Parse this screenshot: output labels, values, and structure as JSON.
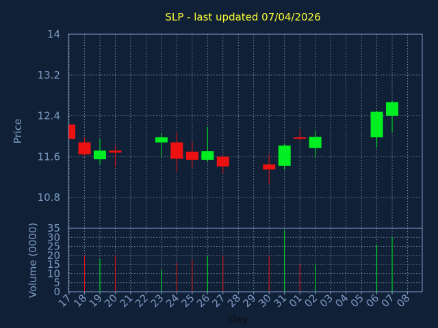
{
  "chart_data": {
    "type": "candlestick",
    "title": "SLP - last updated 07/04/2026",
    "xlabel": "Day",
    "price_ylabel": "Price",
    "volume_ylabel": "Volume (0000)",
    "x_ticks": [
      "17",
      "18",
      "19",
      "20",
      "21",
      "22",
      "23",
      "24",
      "25",
      "26",
      "27",
      "28",
      "29",
      "30",
      "31",
      "01",
      "02",
      "03",
      "04",
      "05",
      "06",
      "07",
      "08"
    ],
    "price_ylim": [
      10.2,
      14
    ],
    "price_ticks": [
      "14",
      "13.2",
      "12.4",
      "11.6",
      "10.8"
    ],
    "volume_ylim": [
      0,
      35
    ],
    "volume_ticks": [
      "35",
      "30",
      "25",
      "20",
      "15",
      "10",
      "5",
      "0"
    ],
    "colors": {
      "up": "#00ee22",
      "down": "#ee1111",
      "axis": "#7f9bc4",
      "title": "#ffff33",
      "background": "#0f2037"
    },
    "candles": [
      {
        "day": "17",
        "open": 12.23,
        "high": 12.23,
        "low": 11.95,
        "close": 11.95,
        "volume": 0
      },
      {
        "day": "18",
        "open": 11.88,
        "high": 11.98,
        "low": 11.62,
        "close": 11.65,
        "volume": 20
      },
      {
        "day": "19",
        "open": 11.55,
        "high": 11.95,
        "low": 11.45,
        "close": 11.72,
        "volume": 18
      },
      {
        "day": "20",
        "open": 11.72,
        "high": 11.82,
        "low": 11.4,
        "close": 11.68,
        "volume": 20
      },
      {
        "day": "23",
        "open": 11.88,
        "high": 12.06,
        "low": 11.6,
        "close": 11.98,
        "volume": 12
      },
      {
        "day": "24",
        "open": 11.88,
        "high": 12.08,
        "low": 11.3,
        "close": 11.56,
        "volume": 16
      },
      {
        "day": "25",
        "open": 11.7,
        "high": 11.9,
        "low": 11.38,
        "close": 11.54,
        "volume": 18
      },
      {
        "day": "26",
        "open": 11.54,
        "high": 12.18,
        "low": 11.5,
        "close": 11.71,
        "volume": 20
      },
      {
        "day": "27",
        "open": 11.6,
        "high": 11.62,
        "low": 11.28,
        "close": 11.41,
        "volume": 20
      },
      {
        "day": "30",
        "open": 11.45,
        "high": 11.64,
        "low": 11.06,
        "close": 11.35,
        "volume": 20
      },
      {
        "day": "31",
        "open": 11.42,
        "high": 11.86,
        "low": 11.34,
        "close": 11.82,
        "volume": 34
      },
      {
        "day": "01",
        "open": 11.98,
        "high": 12.14,
        "low": 11.9,
        "close": 11.96,
        "volume": 15
      },
      {
        "day": "02",
        "open": 11.77,
        "high": 12.1,
        "low": 11.6,
        "close": 11.99,
        "volume": 15
      },
      {
        "day": "06",
        "open": 11.98,
        "high": 12.5,
        "low": 11.78,
        "close": 12.48,
        "volume": 26
      },
      {
        "day": "07",
        "open": 12.4,
        "high": 12.69,
        "low": 12.08,
        "close": 12.67,
        "volume": 30
      }
    ]
  }
}
